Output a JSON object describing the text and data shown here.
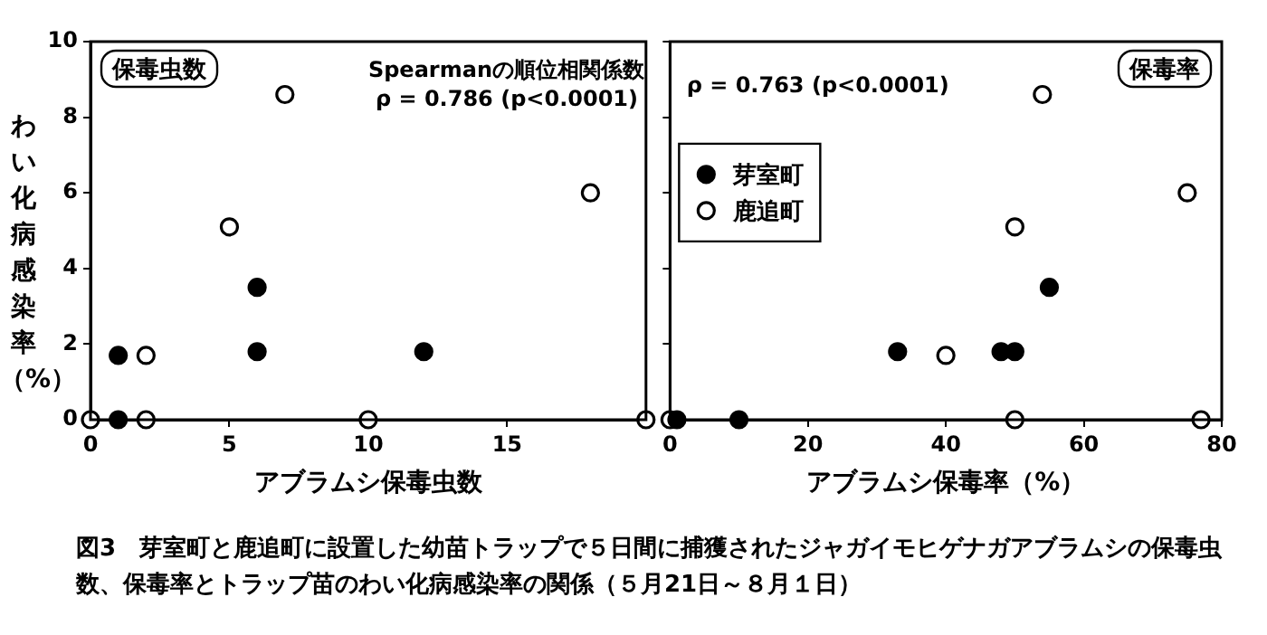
{
  "chart_data": [
    {
      "type": "scatter",
      "title": "保毒虫数",
      "xlabel": "アブラムシ保毒虫数",
      "ylabel": "わい化病感染率（%）",
      "xlim": [
        0,
        20
      ],
      "xticks": [
        0,
        5,
        10,
        15,
        {
          "value": 20,
          "label": null
        }
      ],
      "ylim": [
        0,
        10
      ],
      "yticks": [
        0,
        2,
        4,
        6,
        8,
        10
      ],
      "marker": "circle",
      "annotations": [
        "Spearmanの順位相関係数",
        "ρ = 0.786 (p<0.0001)"
      ],
      "series": [
        {
          "color": "#000000",
          "x": [
            1,
            1,
            6,
            6,
            12
          ],
          "values": [
            1.7,
            0,
            3.5,
            1.8,
            1.8
          ]
        },
        {
          "color": "#ffffff",
          "x": [
            0,
            2,
            2,
            5,
            7,
            10,
            18,
            20
          ],
          "values": [
            0,
            1.7,
            0,
            5.1,
            8.6,
            0,
            6,
            0
          ]
        }
      ]
    },
    {
      "type": "scatter",
      "title": "保毒率",
      "xlabel": "アブラムシ保毒率（%）",
      "xlim": [
        0,
        80
      ],
      "xticks": [
        0,
        20,
        40,
        60,
        80
      ],
      "ylim": [
        0,
        10
      ],
      "yticks": [
        0,
        2,
        4,
        6,
        8,
        10
      ],
      "tick_labels": "x",
      "marker": "circle",
      "legend": "top left",
      "annotations": [
        "ρ = 0.763 (p<0.0001)"
      ],
      "series": [
        {
          "name": "芽室町",
          "color": "#000000",
          "x": [
            1,
            10,
            33,
            48,
            50,
            55
          ],
          "values": [
            0,
            0,
            1.8,
            1.8,
            1.8,
            3.5
          ]
        },
        {
          "name": "鹿追町",
          "color": "#ffffff",
          "x": [
            0,
            40,
            50,
            50,
            54,
            75,
            77
          ],
          "values": [
            0,
            1.7,
            0,
            5.1,
            8.6,
            6,
            0
          ]
        }
      ]
    },
    {
      "type": "other",
      "title": "図3　芽室町と鹿追町に設置した幼苗トラップで５日間に捕獲されたジャガイモヒゲナガアブラムシの保毒虫数、保毒率とトラップ苗のわい化病感染率の関係（５月21日～８月１日）"
    }
  ]
}
